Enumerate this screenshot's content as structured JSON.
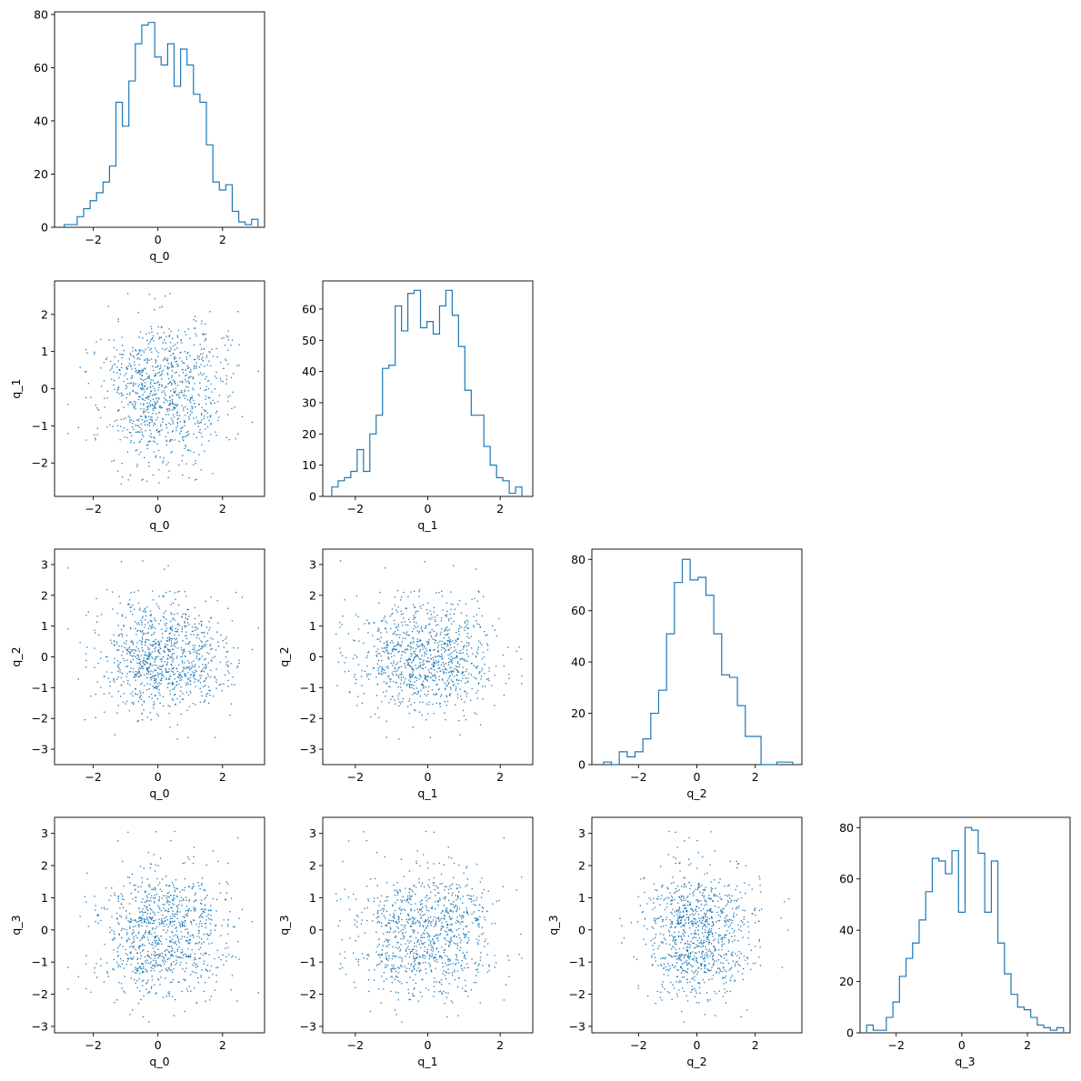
{
  "chart_data": {
    "type": "corner-plot",
    "params": [
      "q_0",
      "q_1",
      "q_2",
      "q_3"
    ],
    "colors": {
      "series": "#1f77b4",
      "axes": "#000000"
    },
    "n_samples": 1000,
    "histograms": [
      {
        "param": "q_0",
        "type": "bar",
        "style": "step",
        "xlim": [
          -3.2,
          3.3
        ],
        "ylim": [
          0,
          81
        ],
        "xticks": [
          -2,
          0,
          2
        ],
        "yticks": [
          0,
          20,
          40,
          60,
          80
        ],
        "bin_edges": [
          -2.9,
          -2.7,
          -2.5,
          -2.3,
          -2.1,
          -1.9,
          -1.7,
          -1.5,
          -1.3,
          -1.1,
          -0.9,
          -0.7,
          -0.5,
          -0.3,
          -0.1,
          0.1,
          0.3,
          0.5,
          0.7,
          0.9,
          1.1,
          1.3,
          1.5,
          1.7,
          1.9,
          2.1,
          2.3,
          2.5,
          2.7,
          2.9,
          3.1
        ],
        "counts": [
          1,
          1,
          4,
          7,
          10,
          13,
          17,
          23,
          47,
          38,
          55,
          69,
          76,
          77,
          64,
          61,
          69,
          53,
          67,
          61,
          50,
          47,
          31,
          17,
          14,
          16,
          6,
          2,
          1,
          3
        ]
      },
      {
        "param": "q_1",
        "type": "bar",
        "style": "step",
        "xlim": [
          -2.9,
          2.9
        ],
        "ylim": [
          0,
          69
        ],
        "xticks": [
          -2,
          0,
          2
        ],
        "yticks": [
          0,
          10,
          20,
          30,
          40,
          50,
          60
        ],
        "bin_edges": [
          -2.65,
          -2.475,
          -2.3,
          -2.125,
          -1.95,
          -1.775,
          -1.6,
          -1.425,
          -1.25,
          -1.075,
          -0.9,
          -0.725,
          -0.55,
          -0.375,
          -0.2,
          -0.025,
          0.15,
          0.325,
          0.5,
          0.675,
          0.85,
          1.025,
          1.2,
          1.375,
          1.55,
          1.725,
          1.9,
          2.075,
          2.25,
          2.425,
          2.6
        ],
        "counts": [
          3,
          5,
          6,
          8,
          15,
          8,
          20,
          26,
          41,
          42,
          61,
          53,
          65,
          66,
          54,
          56,
          52,
          61,
          66,
          58,
          48,
          34,
          26,
          26,
          16,
          10,
          6,
          5,
          1,
          3
        ]
      },
      {
        "param": "q_2",
        "type": "bar",
        "style": "step",
        "xlim": [
          -3.6,
          3.6
        ],
        "ylim": [
          0,
          84
        ],
        "xticks": [
          -2,
          0,
          2
        ],
        "yticks": [
          0,
          20,
          40,
          60,
          80
        ],
        "bin_edges": [
          -3.2,
          -2.93,
          -2.66,
          -2.39,
          -2.12,
          -1.85,
          -1.58,
          -1.31,
          -1.04,
          -0.77,
          -0.5,
          -0.23,
          0.04,
          0.31,
          0.58,
          0.85,
          1.12,
          1.39,
          1.66,
          1.93,
          2.2,
          2.47,
          2.74,
          3.01,
          3.28
        ],
        "counts": [
          1,
          0,
          5,
          3,
          5,
          10,
          20,
          29,
          51,
          71,
          80,
          72,
          73,
          66,
          51,
          35,
          34,
          23,
          11,
          11,
          0,
          0,
          1,
          1
        ]
      },
      {
        "param": "q_3",
        "type": "bar",
        "style": "step",
        "xlim": [
          -3.1,
          3.3
        ],
        "ylim": [
          0,
          84
        ],
        "xticks": [
          -2,
          0,
          2
        ],
        "yticks": [
          0,
          20,
          40,
          60,
          80
        ],
        "bin_edges": [
          -2.9,
          -2.7,
          -2.5,
          -2.3,
          -2.1,
          -1.9,
          -1.7,
          -1.5,
          -1.3,
          -1.1,
          -0.9,
          -0.7,
          -0.5,
          -0.3,
          -0.1,
          0.1,
          0.3,
          0.5,
          0.7,
          0.9,
          1.1,
          1.3,
          1.5,
          1.7,
          1.9,
          2.1,
          2.3,
          2.5,
          2.7,
          2.9,
          3.1
        ],
        "counts": [
          3,
          1,
          1,
          6,
          12,
          22,
          29,
          35,
          44,
          55,
          68,
          67,
          62,
          71,
          47,
          80,
          79,
          70,
          47,
          67,
          35,
          23,
          15,
          10,
          9,
          6,
          3,
          2,
          1,
          2
        ]
      }
    ],
    "scatters": [
      {
        "x": "q_0",
        "y": "q_1",
        "type": "scatter",
        "xlim": [
          -3.2,
          3.3
        ],
        "ylim": [
          -2.9,
          2.9
        ],
        "xticks": [
          -2,
          0,
          2
        ],
        "yticks": [
          -2,
          -1,
          0,
          1,
          2
        ]
      },
      {
        "x": "q_0",
        "y": "q_2",
        "type": "scatter",
        "xlim": [
          -3.2,
          3.3
        ],
        "ylim": [
          -3.5,
          3.5
        ],
        "xticks": [
          -2,
          0,
          2
        ],
        "yticks": [
          -3,
          -2,
          -1,
          0,
          1,
          2,
          3
        ]
      },
      {
        "x": "q_1",
        "y": "q_2",
        "type": "scatter",
        "xlim": [
          -2.9,
          2.9
        ],
        "ylim": [
          -3.5,
          3.5
        ],
        "xticks": [
          -2,
          0,
          2
        ],
        "yticks": [
          -3,
          -2,
          -1,
          0,
          1,
          2,
          3
        ]
      },
      {
        "x": "q_0",
        "y": "q_3",
        "type": "scatter",
        "xlim": [
          -3.2,
          3.3
        ],
        "ylim": [
          -3.2,
          3.5
        ],
        "xticks": [
          -2,
          0,
          2
        ],
        "yticks": [
          -3,
          -2,
          -1,
          0,
          1,
          2,
          3
        ]
      },
      {
        "x": "q_1",
        "y": "q_3",
        "type": "scatter",
        "xlim": [
          -2.9,
          2.9
        ],
        "ylim": [
          -3.2,
          3.5
        ],
        "xticks": [
          -2,
          0,
          2
        ],
        "yticks": [
          -3,
          -2,
          -1,
          0,
          1,
          2,
          3
        ]
      },
      {
        "x": "q_2",
        "y": "q_3",
        "type": "scatter",
        "xlim": [
          -3.6,
          3.6
        ],
        "ylim": [
          -3.2,
          3.5
        ],
        "xticks": [
          -2,
          0,
          2
        ],
        "yticks": [
          -3,
          -2,
          -1,
          0,
          1,
          2,
          3
        ]
      }
    ]
  }
}
